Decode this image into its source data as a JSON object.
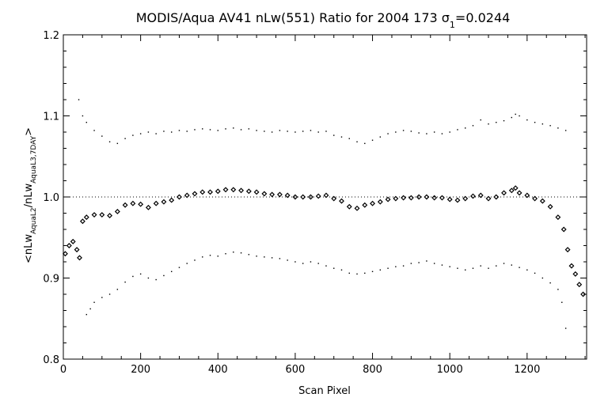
{
  "chart_data": {
    "type": "scatter",
    "title_main": "MODIS/Aqua AV41 nLw(551) Ratio for 2004 173 ",
    "title_sigma": "σ",
    "title_sigma_sub": "1",
    "title_value": "=0.0244",
    "xlabel": "Scan Pixel",
    "ylabel_parts": {
      "open": "<nLw",
      "sub1": "AquaL2",
      "slash": "/nLw",
      "sub2": "AquaL3,7DAY",
      "close": ">"
    },
    "xlim": [
      0,
      1354
    ],
    "ylim": [
      0.8,
      1.2
    ],
    "x_ticks": [
      0,
      200,
      400,
      600,
      800,
      1000,
      1200
    ],
    "x_tick_labels": [
      "0",
      "200",
      "400",
      "600",
      "800",
      "1000",
      "1200"
    ],
    "y_ticks": [
      0.8,
      0.9,
      1.0,
      1.1,
      1.2
    ],
    "y_tick_labels": [
      "0.8",
      "0.9",
      "1.0",
      "1.1",
      "1.2"
    ],
    "reference_line": 1.0,
    "series": [
      {
        "role": "mean",
        "marker": "diamond",
        "points": [
          [
            5,
            0.93
          ],
          [
            15,
            0.94
          ],
          [
            25,
            0.945
          ],
          [
            35,
            0.935
          ],
          [
            42,
            0.925
          ],
          [
            50,
            0.97
          ],
          [
            60,
            0.975
          ],
          [
            80,
            0.978
          ],
          [
            100,
            0.978
          ],
          [
            120,
            0.977
          ],
          [
            140,
            0.982
          ],
          [
            160,
            0.99
          ],
          [
            180,
            0.992
          ],
          [
            200,
            0.991
          ],
          [
            220,
            0.987
          ],
          [
            240,
            0.992
          ],
          [
            260,
            0.994
          ],
          [
            280,
            0.996
          ],
          [
            300,
            1.0
          ],
          [
            320,
            1.002
          ],
          [
            340,
            1.004
          ],
          [
            360,
            1.006
          ],
          [
            380,
            1.006
          ],
          [
            400,
            1.007
          ],
          [
            420,
            1.009
          ],
          [
            440,
            1.009
          ],
          [
            460,
            1.008
          ],
          [
            480,
            1.007
          ],
          [
            500,
            1.006
          ],
          [
            520,
            1.004
          ],
          [
            540,
            1.003
          ],
          [
            560,
            1.003
          ],
          [
            580,
            1.002
          ],
          [
            600,
            1.0
          ],
          [
            620,
            1.0
          ],
          [
            640,
            1.0
          ],
          [
            660,
            1.001
          ],
          [
            680,
            1.002
          ],
          [
            700,
            0.998
          ],
          [
            720,
            0.995
          ],
          [
            740,
            0.988
          ],
          [
            760,
            0.986
          ],
          [
            780,
            0.99
          ],
          [
            800,
            0.992
          ],
          [
            820,
            0.994
          ],
          [
            840,
            0.997
          ],
          [
            860,
            0.998
          ],
          [
            880,
            0.999
          ],
          [
            900,
            0.999
          ],
          [
            920,
            1.0
          ],
          [
            940,
            1.0
          ],
          [
            960,
            0.999
          ],
          [
            980,
            0.999
          ],
          [
            1000,
            0.997
          ],
          [
            1020,
            0.996
          ],
          [
            1040,
            0.998
          ],
          [
            1060,
            1.001
          ],
          [
            1080,
            1.002
          ],
          [
            1100,
            0.998
          ],
          [
            1120,
            1.0
          ],
          [
            1140,
            1.005
          ],
          [
            1160,
            1.008
          ],
          [
            1170,
            1.011
          ],
          [
            1180,
            1.005
          ],
          [
            1200,
            1.002
          ],
          [
            1220,
            0.998
          ],
          [
            1240,
            0.995
          ],
          [
            1260,
            0.988
          ],
          [
            1280,
            0.975
          ],
          [
            1295,
            0.96
          ],
          [
            1305,
            0.935
          ],
          [
            1315,
            0.915
          ],
          [
            1325,
            0.905
          ],
          [
            1335,
            0.892
          ],
          [
            1345,
            0.88
          ]
        ]
      },
      {
        "role": "upper",
        "marker": "dot",
        "points": [
          [
            40,
            1.12
          ],
          [
            50,
            1.1
          ],
          [
            60,
            1.092
          ],
          [
            80,
            1.082
          ],
          [
            100,
            1.075
          ],
          [
            120,
            1.068
          ],
          [
            140,
            1.066
          ],
          [
            160,
            1.072
          ],
          [
            180,
            1.076
          ],
          [
            200,
            1.078
          ],
          [
            220,
            1.08
          ],
          [
            240,
            1.078
          ],
          [
            260,
            1.081
          ],
          [
            280,
            1.08
          ],
          [
            300,
            1.082
          ],
          [
            320,
            1.081
          ],
          [
            340,
            1.083
          ],
          [
            360,
            1.084
          ],
          [
            380,
            1.083
          ],
          [
            400,
            1.082
          ],
          [
            420,
            1.084
          ],
          [
            440,
            1.085
          ],
          [
            460,
            1.083
          ],
          [
            480,
            1.084
          ],
          [
            500,
            1.082
          ],
          [
            520,
            1.081
          ],
          [
            540,
            1.08
          ],
          [
            560,
            1.082
          ],
          [
            580,
            1.081
          ],
          [
            600,
            1.08
          ],
          [
            620,
            1.081
          ],
          [
            640,
            1.082
          ],
          [
            660,
            1.08
          ],
          [
            680,
            1.081
          ],
          [
            700,
            1.076
          ],
          [
            720,
            1.074
          ],
          [
            740,
            1.072
          ],
          [
            760,
            1.068
          ],
          [
            780,
            1.066
          ],
          [
            800,
            1.07
          ],
          [
            820,
            1.074
          ],
          [
            840,
            1.078
          ],
          [
            860,
            1.08
          ],
          [
            880,
            1.082
          ],
          [
            900,
            1.081
          ],
          [
            920,
            1.079
          ],
          [
            940,
            1.078
          ],
          [
            960,
            1.08
          ],
          [
            980,
            1.078
          ],
          [
            1000,
            1.08
          ],
          [
            1020,
            1.083
          ],
          [
            1040,
            1.085
          ],
          [
            1060,
            1.088
          ],
          [
            1080,
            1.095
          ],
          [
            1100,
            1.09
          ],
          [
            1120,
            1.092
          ],
          [
            1140,
            1.094
          ],
          [
            1160,
            1.098
          ],
          [
            1170,
            1.102
          ],
          [
            1180,
            1.1
          ],
          [
            1200,
            1.095
          ],
          [
            1220,
            1.092
          ],
          [
            1240,
            1.09
          ],
          [
            1260,
            1.088
          ],
          [
            1280,
            1.085
          ],
          [
            1300,
            1.082
          ]
        ]
      },
      {
        "role": "lower",
        "marker": "dot",
        "points": [
          [
            60,
            0.855
          ],
          [
            70,
            0.862
          ],
          [
            80,
            0.87
          ],
          [
            100,
            0.876
          ],
          [
            120,
            0.88
          ],
          [
            140,
            0.886
          ],
          [
            160,
            0.895
          ],
          [
            180,
            0.902
          ],
          [
            200,
            0.905
          ],
          [
            220,
            0.9
          ],
          [
            240,
            0.898
          ],
          [
            260,
            0.903
          ],
          [
            280,
            0.908
          ],
          [
            300,
            0.913
          ],
          [
            320,
            0.918
          ],
          [
            340,
            0.922
          ],
          [
            360,
            0.926
          ],
          [
            380,
            0.928
          ],
          [
            400,
            0.927
          ],
          [
            420,
            0.93
          ],
          [
            440,
            0.932
          ],
          [
            460,
            0.931
          ],
          [
            480,
            0.929
          ],
          [
            500,
            0.927
          ],
          [
            520,
            0.926
          ],
          [
            540,
            0.925
          ],
          [
            560,
            0.924
          ],
          [
            580,
            0.922
          ],
          [
            600,
            0.92
          ],
          [
            620,
            0.918
          ],
          [
            640,
            0.92
          ],
          [
            660,
            0.918
          ],
          [
            680,
            0.915
          ],
          [
            700,
            0.912
          ],
          [
            720,
            0.91
          ],
          [
            740,
            0.906
          ],
          [
            760,
            0.905
          ],
          [
            780,
            0.906
          ],
          [
            800,
            0.908
          ],
          [
            820,
            0.91
          ],
          [
            840,
            0.912
          ],
          [
            860,
            0.914
          ],
          [
            880,
            0.915
          ],
          [
            900,
            0.918
          ],
          [
            920,
            0.919
          ],
          [
            940,
            0.921
          ],
          [
            960,
            0.918
          ],
          [
            980,
            0.916
          ],
          [
            1000,
            0.914
          ],
          [
            1020,
            0.912
          ],
          [
            1040,
            0.91
          ],
          [
            1060,
            0.912
          ],
          [
            1080,
            0.915
          ],
          [
            1100,
            0.912
          ],
          [
            1120,
            0.915
          ],
          [
            1140,
            0.918
          ],
          [
            1160,
            0.916
          ],
          [
            1180,
            0.913
          ],
          [
            1200,
            0.91
          ],
          [
            1220,
            0.906
          ],
          [
            1240,
            0.9
          ],
          [
            1260,
            0.894
          ],
          [
            1280,
            0.886
          ],
          [
            1290,
            0.87
          ],
          [
            1300,
            0.838
          ]
        ]
      }
    ]
  }
}
